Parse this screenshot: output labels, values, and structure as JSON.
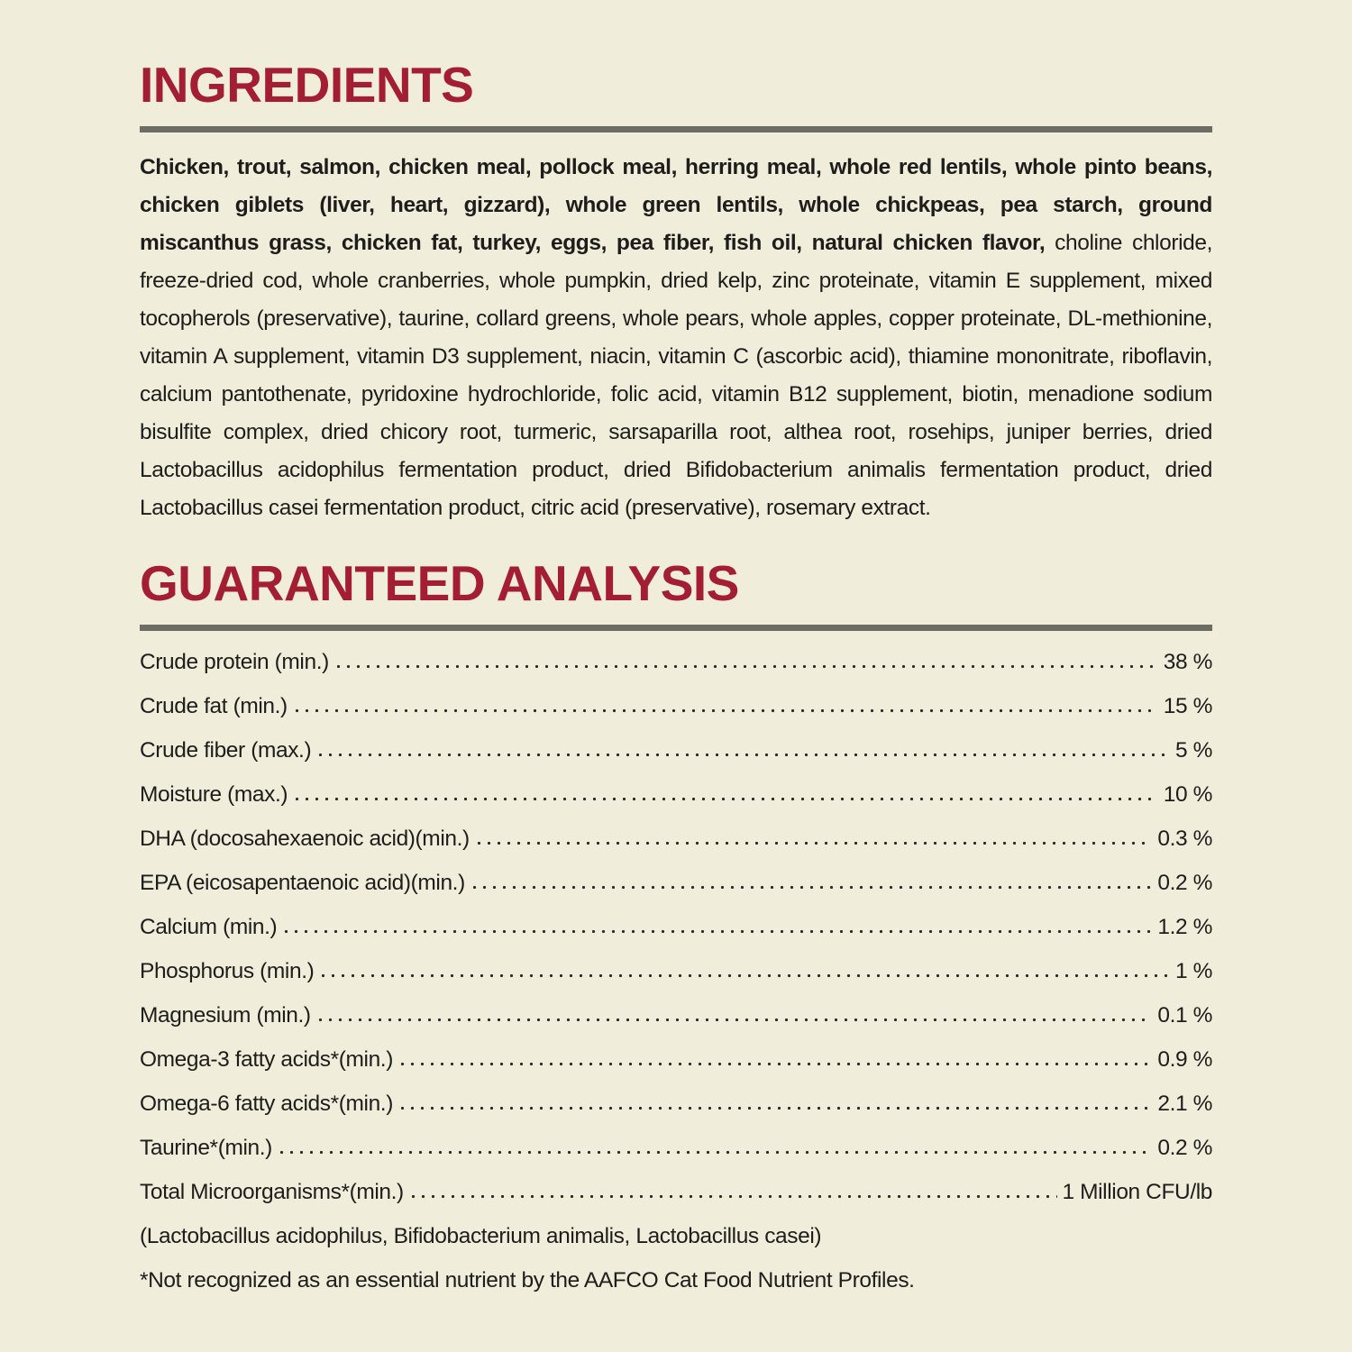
{
  "page": {
    "background_color": "#f0eddb",
    "accent_color": "#a41e33",
    "rule_color": "#6d6d66",
    "text_color": "#1d1d1b"
  },
  "ingredients": {
    "title": "INGREDIENTS",
    "bold_text": "Chicken, trout, salmon, chicken meal, pollock meal, herring meal, whole red lentils, whole pinto beans, chicken giblets (liver, heart, gizzard), whole green lentils, whole chickpeas, pea starch, ground miscanthus grass, chicken fat, turkey, eggs, pea fiber, fish oil, natural chicken flavor,",
    "regular_text": " choline chloride, freeze-dried cod, whole cranberries, whole pumpkin, dried kelp, zinc proteinate, vitamin E supplement, mixed tocopherols (preservative), taurine, collard greens, whole pears, whole apples, copper proteinate, DL-methionine, vitamin A supplement, vitamin D3 supplement, niacin, vitamin C (ascorbic acid), thiamine mononitrate, riboflavin, calcium pantothenate, pyridoxine hydrochloride, folic acid, vitamin B12 supplement, biotin, menadione sodium bisulfite complex, dried chicory root, turmeric, sarsaparilla root, althea root, rosehips, juniper berries, dried Lactobacillus acidophilus fermentation product, dried Bifidobacterium animalis fermentation product, dried Lactobacillus casei fermentation product, citric acid (preservative), rosemary extract."
  },
  "analysis": {
    "title": "GUARANTEED ANALYSIS",
    "rows": [
      {
        "label": "Crude protein (min.)",
        "value": "38 %"
      },
      {
        "label": "Crude fat (min.)",
        "value": "15 %"
      },
      {
        "label": "Crude fiber (max.)",
        "value": "5 %"
      },
      {
        "label": "Moisture (max.)",
        "value": "10 %"
      },
      {
        "label": "DHA (docosahexaenoic acid)(min.)",
        "value": "0.3 %"
      },
      {
        "label": "EPA (eicosapentaenoic acid)(min.)",
        "value": "0.2 %"
      },
      {
        "label": "Calcium (min.)",
        "value": "1.2 %"
      },
      {
        "label": "Phosphorus (min.)",
        "value": "1 %"
      },
      {
        "label": "Magnesium (min.)",
        "value": "0.1 %"
      },
      {
        "label": "Omega-3 fatty acids*(min.)",
        "value": "0.9 %"
      },
      {
        "label": "Omega-6 fatty acids*(min.)",
        "value": "2.1 %"
      },
      {
        "label": "Taurine*(min.)",
        "value": "0.2 %"
      },
      {
        "label": "Total Microorganisms*(min.)",
        "value": "1 Million CFU/lb"
      }
    ],
    "organisms_note": "(Lactobacillus acidophilus, Bifidobacterium animalis, Lactobacillus casei)",
    "footnote": "*Not recognized as an essential nutrient by the AAFCO Cat Food Nutrient Profiles."
  }
}
